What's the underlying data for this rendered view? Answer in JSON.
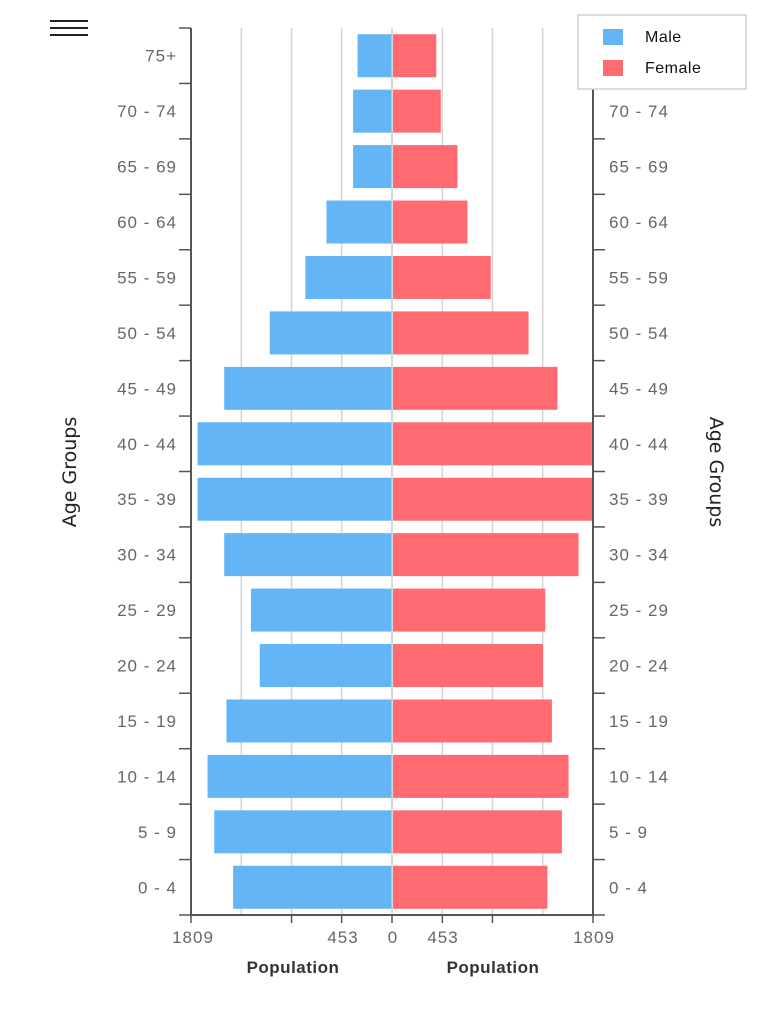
{
  "menu": {
    "icon": "hamburger-menu-icon"
  },
  "colors": {
    "male": "#64b5f6",
    "female": "#ff6b70",
    "grid": "#d4d4d4",
    "axis": "#555555"
  },
  "chart_data": {
    "type": "bar",
    "orientation": "horizontal",
    "layout": "population-pyramid",
    "categories": [
      "75+",
      "70 - 74",
      "65 - 69",
      "60 - 64",
      "55 - 59",
      "50 - 54",
      "45 - 49",
      "40 - 44",
      "35 - 39",
      "30 - 34",
      "25 - 29",
      "20 - 24",
      "15 - 19",
      "10 - 14",
      "5 - 9",
      "0 - 4"
    ],
    "series": [
      {
        "name": "Male",
        "color": "#64b5f6",
        "values": [
          310,
          350,
          350,
          590,
          780,
          1100,
          1510,
          1750,
          1750,
          1510,
          1270,
          1190,
          1490,
          1660,
          1600,
          1430
        ]
      },
      {
        "name": "Female",
        "color": "#ff6b70",
        "values": [
          390,
          430,
          580,
          670,
          880,
          1220,
          1480,
          1790,
          1809,
          1670,
          1370,
          1350,
          1430,
          1580,
          1520,
          1390
        ]
      }
    ],
    "x_ticks": {
      "left": [
        "1809",
        "453",
        "0"
      ],
      "right": [
        "453",
        "1809"
      ]
    },
    "xlim": [
      -1809,
      1809
    ],
    "xlabel_left": "Population",
    "xlabel_right": "Population",
    "ylabel_left": "Age Groups",
    "ylabel_right": "Age Groups",
    "legend": {
      "position": "top-right",
      "entries": [
        "Male",
        "Female"
      ]
    },
    "grid": true
  }
}
